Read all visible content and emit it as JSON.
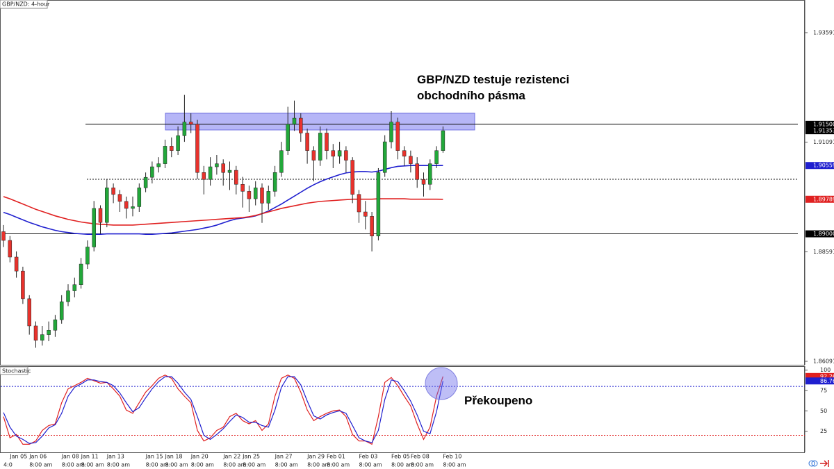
{
  "chart_data": [
    {
      "type": "candlestick",
      "title": "GBP/NZD: 4-hour",
      "categories": [
        null,
        "Jan 05",
        null,
        null,
        "Jan 06",
        null,
        null,
        null,
        null,
        "Jan 08",
        null,
        null,
        "Jan 11",
        null,
        null,
        null,
        "Jan 13",
        null,
        null,
        null,
        null,
        null,
        "Jan 15",
        null,
        null,
        "Jan 18",
        null,
        null,
        null,
        "Jan 20",
        null,
        null,
        null,
        null,
        "Jan 22",
        null,
        null,
        "Jan 25",
        null,
        null,
        null,
        null,
        "Jan 27",
        null,
        null,
        null,
        null,
        "Jan 29",
        null,
        null,
        "Feb 01",
        null,
        null,
        null,
        null,
        "Feb 03",
        null,
        null,
        null,
        null,
        "Feb 05",
        null,
        null,
        "Feb 08",
        null,
        null,
        null,
        null,
        "Feb 10"
      ],
      "time_labels": [
        "4:0",
        null,
        null,
        null,
        "8:00 am",
        null,
        null,
        null,
        null,
        "8:00 am",
        null,
        null,
        "8:00 am",
        null,
        null,
        null,
        "8:00 am",
        null,
        null,
        null,
        null,
        null,
        "8:00 am",
        null,
        null,
        "8:00 am",
        null,
        null,
        null,
        "8:00 am",
        null,
        null,
        null,
        null,
        "8:00 am",
        null,
        null,
        "8:00 am",
        null,
        null,
        null,
        null,
        "8:00 am",
        null,
        null,
        null,
        null,
        "8:00 am",
        null,
        null,
        "8:00 am",
        null,
        null,
        null,
        null,
        "8:00 am",
        null,
        null,
        null,
        null,
        "8:00 am",
        null,
        null,
        "8:00 am",
        null,
        null,
        null,
        null,
        "8:00 am"
      ],
      "open": [
        1.8905,
        1.8885,
        1.8847,
        1.8815,
        1.8752,
        1.869,
        1.8657,
        1.867,
        1.868,
        1.8704,
        1.8745,
        1.877,
        1.8784,
        1.8831,
        1.887,
        1.8958,
        1.8926,
        1.9005,
        1.899,
        1.8974,
        1.8958,
        1.8962,
        1.9005,
        1.9029,
        1.9053,
        1.906,
        1.91,
        1.909,
        1.9124,
        1.9155,
        1.915,
        1.904,
        1.9024,
        1.9053,
        1.906,
        1.904,
        1.9045,
        1.9013,
        1.8997,
        1.898,
        1.9005,
        1.897,
        1.8997,
        1.904,
        1.909,
        1.915,
        1.9164,
        1.913,
        1.909,
        1.9068,
        1.913,
        1.909,
        1.9077,
        1.909,
        1.9068,
        1.899,
        1.895,
        1.894,
        1.8895,
        1.904,
        1.911,
        1.9155,
        1.909,
        1.9077,
        1.906,
        1.9024,
        1.9013,
        1.906,
        1.909
      ],
      "high": [
        1.892,
        1.8895,
        1.886,
        1.8825,
        1.876,
        1.87,
        1.869,
        1.87,
        1.8715,
        1.876,
        1.8785,
        1.88,
        1.8845,
        1.8885,
        1.8975,
        1.8965,
        1.9025,
        1.9015,
        1.9,
        1.8985,
        1.8985,
        1.9015,
        1.904,
        1.9065,
        1.9075,
        1.9115,
        1.912,
        1.9145,
        1.9217,
        1.9175,
        1.916,
        1.9055,
        1.9075,
        1.908,
        1.907,
        1.9065,
        1.9055,
        1.903,
        1.901,
        1.902,
        1.9015,
        1.901,
        1.9055,
        1.911,
        1.919,
        1.9204,
        1.9175,
        1.914,
        1.91,
        1.9145,
        1.914,
        1.9105,
        1.911,
        1.91,
        1.9075,
        1.9,
        1.8975,
        1.895,
        1.905,
        1.9125,
        1.918,
        1.9165,
        1.91,
        1.909,
        1.9075,
        1.904,
        1.907,
        1.91,
        1.9145
      ],
      "low": [
        1.887,
        1.8835,
        1.88,
        1.874,
        1.867,
        1.864,
        1.8645,
        1.8655,
        1.8665,
        1.8695,
        1.8735,
        1.8755,
        1.8775,
        1.882,
        1.886,
        1.89,
        1.8915,
        1.897,
        1.895,
        1.8935,
        1.894,
        1.895,
        1.8995,
        1.9015,
        1.904,
        1.905,
        1.9075,
        1.908,
        1.911,
        1.913,
        1.9025,
        1.899,
        1.901,
        1.9035,
        1.901,
        1.9,
        1.899,
        1.896,
        1.895,
        1.8965,
        1.8925,
        1.8955,
        1.8985,
        1.903,
        1.908,
        1.9135,
        1.911,
        1.906,
        1.902,
        1.9055,
        1.907,
        1.905,
        1.906,
        1.904,
        1.897,
        1.8925,
        1.891,
        1.886,
        1.8885,
        1.903,
        1.9095,
        1.907,
        1.9055,
        1.904,
        1.9005,
        1.8985,
        1.9,
        1.905,
        1.9085
      ],
      "close": [
        1.8885,
        1.8847,
        1.8815,
        1.8752,
        1.869,
        1.8657,
        1.867,
        1.868,
        1.8704,
        1.8745,
        1.877,
        1.8784,
        1.8831,
        1.887,
        1.8958,
        1.8926,
        1.9005,
        1.899,
        1.8974,
        1.8958,
        1.8962,
        1.9005,
        1.9029,
        1.9053,
        1.906,
        1.91,
        1.909,
        1.9124,
        1.9155,
        1.915,
        1.904,
        1.9024,
        1.9053,
        1.906,
        1.904,
        1.9045,
        1.9013,
        1.8997,
        1.898,
        1.9005,
        1.897,
        1.8997,
        1.904,
        1.909,
        1.915,
        1.9164,
        1.913,
        1.909,
        1.9068,
        1.913,
        1.909,
        1.9077,
        1.909,
        1.9068,
        1.899,
        1.895,
        1.894,
        1.8895,
        1.904,
        1.911,
        1.9155,
        1.909,
        1.9077,
        1.906,
        1.9024,
        1.9013,
        1.906,
        1.909,
        1.91353
      ],
      "up_color": "#22a83a",
      "down_color": "#e8322c",
      "series": [
        {
          "color": "#1f1fcf",
          "values": [
            1.8949,
            1.8944,
            1.8938,
            1.8932,
            1.8926,
            1.8921,
            1.8916,
            1.8912,
            1.8908,
            1.8905,
            1.8903,
            1.8901,
            1.89,
            1.8899,
            1.8899,
            1.8899,
            1.89,
            1.89,
            1.89,
            1.89,
            1.89,
            1.89,
            1.8899,
            1.8899,
            1.89,
            1.8901,
            1.8902,
            1.8904,
            1.8906,
            1.8908,
            1.891,
            1.8913,
            1.8916,
            1.892,
            1.8925,
            1.893,
            1.8934,
            1.8936,
            1.8938,
            1.8941,
            1.8946,
            1.8952,
            1.896,
            1.8968,
            1.8977,
            1.8986,
            1.8995,
            1.9004,
            1.9012,
            1.9019,
            1.9025,
            1.903,
            1.9035,
            1.9039,
            1.9041,
            1.9042,
            1.9042,
            1.9041,
            1.9043,
            1.9047,
            1.9051,
            1.9054,
            1.9055,
            1.9056,
            1.9056,
            1.9056,
            1.9056,
            1.9056,
            1.90559
          ]
        },
        {
          "color": "#e02020",
          "values": [
            1.8985,
            1.898,
            1.8974,
            1.8968,
            1.8962,
            1.8956,
            1.8951,
            1.8946,
            1.8941,
            1.8937,
            1.8933,
            1.893,
            1.8927,
            1.8925,
            1.8923,
            1.8922,
            1.8921,
            1.892,
            1.892,
            1.892,
            1.892,
            1.8921,
            1.8922,
            1.8923,
            1.8924,
            1.8925,
            1.8926,
            1.8927,
            1.8928,
            1.8929,
            1.893,
            1.8931,
            1.8932,
            1.8933,
            1.8934,
            1.8935,
            1.8936,
            1.8937,
            1.8939,
            1.8942,
            1.8946,
            1.895,
            1.8954,
            1.8958,
            1.8961,
            1.8964,
            1.8967,
            1.897,
            1.8972,
            1.8974,
            1.8975,
            1.8976,
            1.8977,
            1.8978,
            1.8979,
            1.8979,
            1.8979,
            1.8979,
            1.898,
            1.898,
            1.898,
            1.898,
            1.898,
            1.8979,
            1.8979,
            1.8979,
            1.8979,
            1.8979,
            1.89789
          ]
        }
      ],
      "ylim": [
        1.86012,
        1.94336
      ],
      "yticks": [
        1.93591,
        1.91091,
        1.88591,
        1.86091
      ],
      "value_marks": [
        {
          "value": 1.915,
          "label": "1.91500",
          "color": "#000000"
        },
        {
          "value": 1.91353,
          "label": "1.91353",
          "color": "#000000"
        },
        {
          "value": 1.90559,
          "label": "1.90559",
          "color": "#1f1fcf"
        },
        {
          "value": 1.89789,
          "label": "1.89789",
          "color": "#e02020"
        },
        {
          "value": 1.89,
          "label": "1.89000",
          "color": "#000000"
        }
      ],
      "levels": [
        {
          "value": 1.915,
          "style": "solid"
        },
        {
          "value": 1.90245,
          "style": "dotted"
        },
        {
          "value": 1.89,
          "style": "solid"
        }
      ],
      "zone": [
        1.91371,
        1.91752
      ],
      "annotation": [
        "GBP/NZD testuje rezistenci",
        "obchodního pásma"
      ]
    },
    {
      "type": "line",
      "title": "Stochastic",
      "series": [
        {
          "color": "#e02020",
          "values": [
            43,
            17,
            21,
            9,
            9,
            13,
            26,
            32,
            34,
            60,
            77,
            81,
            85,
            90,
            87,
            84,
            85,
            77,
            68,
            51,
            47,
            60,
            73,
            81,
            90,
            94,
            90,
            77,
            68,
            60,
            26,
            13,
            17,
            26,
            30,
            43,
            47,
            38,
            34,
            38,
            26,
            34,
            68,
            90,
            94,
            90,
            73,
            51,
            38,
            43,
            47,
            50,
            51,
            43,
            21,
            13,
            13,
            9,
            43,
            85,
            91,
            81,
            68,
            56,
            34,
            15,
            30,
            68,
            92.26
          ]
        },
        {
          "color": "#1f1fcf",
          "values": [
            48,
            30,
            19,
            15,
            10,
            11,
            19,
            29,
            33,
            47,
            68,
            79,
            83,
            88,
            88,
            86,
            85,
            81,
            72,
            60,
            49,
            54,
            66,
            77,
            86,
            92,
            92,
            84,
            73,
            64,
            43,
            20,
            15,
            21,
            28,
            37,
            45,
            42,
            36,
            36,
            32,
            30,
            51,
            79,
            92,
            92,
            82,
            62,
            44,
            40,
            45,
            48,
            50,
            47,
            32,
            17,
            13,
            11,
            26,
            64,
            88,
            86,
            75,
            62,
            45,
            25,
            22,
            49,
            86.76
          ]
        }
      ],
      "ylim": [
        -0.9,
        104.9
      ],
      "yticks": [
        100,
        75,
        50,
        25
      ],
      "value_marks": [
        {
          "value": 92.26,
          "label": "92.26",
          "color": "#e02020"
        },
        {
          "value": 86.76,
          "label": "86.76",
          "color": "#1f1fcf"
        }
      ],
      "levels": [
        {
          "value": 80,
          "color": "#1f1fcf"
        },
        {
          "value": 20,
          "color": "#e02020"
        }
      ],
      "annotation": "Překoupeno"
    }
  ]
}
